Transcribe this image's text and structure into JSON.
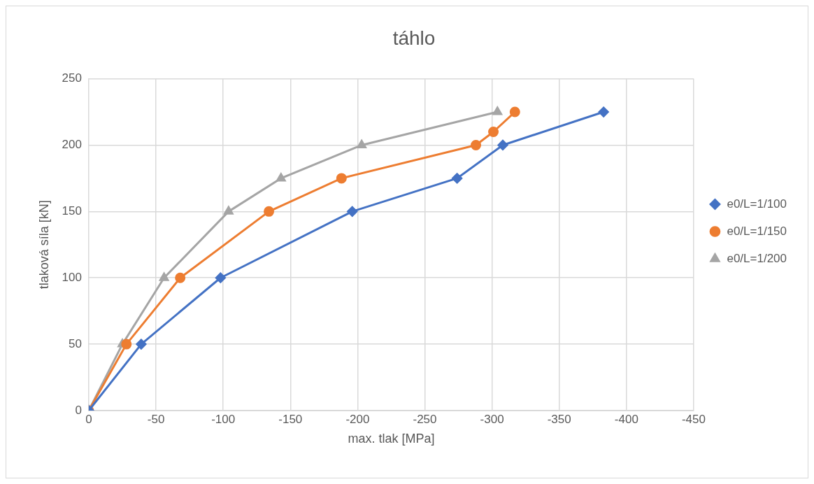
{
  "chart_data": {
    "type": "line",
    "title": "táhlo",
    "xlabel": "max. tlak [MPa]",
    "ylabel": "tlaková síla [kN]",
    "xlim": [
      0,
      -450
    ],
    "xticks": [
      0,
      -50,
      -100,
      -150,
      -200,
      -250,
      -300,
      -350,
      -400,
      -450
    ],
    "ylim": [
      0,
      250
    ],
    "yticks": [
      0,
      50,
      100,
      150,
      200,
      250
    ],
    "grid": true,
    "legend": "right",
    "series": [
      {
        "name": "e0/L=1/100",
        "color": "#4472c4",
        "marker": "diamond",
        "x": [
          0,
          -39,
          -98,
          -196,
          -274,
          -308,
          -383
        ],
        "values": [
          0,
          50,
          100,
          150,
          175,
          200,
          225
        ]
      },
      {
        "name": "e0/L=1/150",
        "color": "#ed7d31",
        "marker": "circle",
        "x": [
          0,
          -28,
          -68,
          -134,
          -188,
          -288,
          -301,
          -317
        ],
        "values": [
          0,
          50,
          100,
          150,
          175,
          200,
          210,
          225
        ]
      },
      {
        "name": "e0/L=1/200",
        "color": "#a5a5a5",
        "marker": "triangle",
        "x": [
          0,
          -25,
          -56,
          -104,
          -143,
          -203,
          -304
        ],
        "values": [
          0,
          50,
          100,
          150,
          175,
          200,
          225
        ]
      }
    ]
  }
}
